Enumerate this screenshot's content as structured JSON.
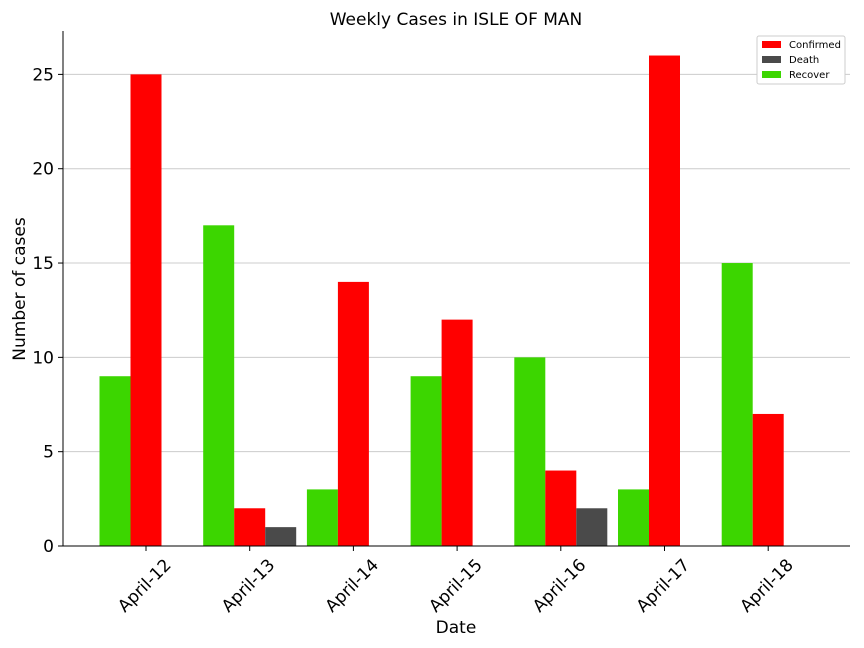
{
  "chart_data": {
    "type": "bar",
    "title": "Weekly Cases in ISLE OF MAN",
    "xlabel": "Date",
    "ylabel": "Number of cases",
    "ylim": [
      0,
      27.3
    ],
    "yticks": [
      0,
      5,
      10,
      15,
      20,
      25
    ],
    "grid": "horizontal",
    "legend_position": "top-right",
    "categories": [
      "April-12",
      "April-13",
      "April-14",
      "April-15",
      "April-16",
      "April-17",
      "April-18"
    ],
    "series": [
      {
        "name": "Recover",
        "color": "#3cd600",
        "values": [
          9,
          17,
          3,
          9,
          10,
          3,
          15
        ]
      },
      {
        "name": "Confirmed",
        "color": "#ff0000",
        "values": [
          25,
          2,
          14,
          12,
          4,
          26,
          7
        ]
      },
      {
        "name": "Death",
        "color": "#4a4a4a",
        "values": [
          0,
          1,
          0,
          0,
          2,
          0,
          0
        ]
      }
    ],
    "legend": [
      "Confirmed",
      "Death",
      "Recover"
    ]
  }
}
